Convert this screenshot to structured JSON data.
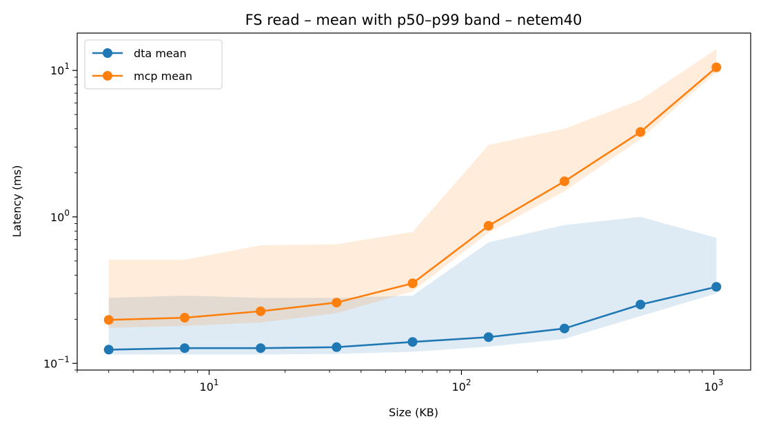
{
  "chart_data": {
    "type": "line",
    "title": "FS read – mean with p50–p99 band – netem40",
    "xlabel": "Size (KB)",
    "ylabel": "Latency (ms)",
    "xscale": "log",
    "yscale": "log",
    "xlim": [
      3.0,
      1400
    ],
    "ylim": [
      0.09,
      18
    ],
    "legend": "top-left",
    "grid": false,
    "x": [
      4,
      8,
      16,
      32,
      64,
      128,
      256,
      512,
      1024
    ],
    "x_ticks": [
      {
        "value": 10,
        "base": "10",
        "exp": "1"
      },
      {
        "value": 100,
        "base": "10",
        "exp": "2"
      },
      {
        "value": 1000,
        "base": "10",
        "exp": "3"
      }
    ],
    "y_ticks": [
      {
        "value": 0.1,
        "base": "10",
        "exp": "−1"
      },
      {
        "value": 1,
        "base": "10",
        "exp": "0"
      },
      {
        "value": 10,
        "base": "10",
        "exp": "1"
      }
    ],
    "series": [
      {
        "name": "dta mean",
        "color": "#1f77b4",
        "values": [
          0.124,
          0.127,
          0.127,
          0.129,
          0.14,
          0.151,
          0.173,
          0.252,
          0.333
        ],
        "band_low": [
          0.115,
          0.115,
          0.115,
          0.116,
          0.12,
          0.13,
          0.147,
          0.21,
          0.3
        ],
        "band_high": [
          0.28,
          0.29,
          0.28,
          0.28,
          0.29,
          0.67,
          0.88,
          1.0,
          0.72
        ]
      },
      {
        "name": "mcp mean",
        "color": "#ff7f0e",
        "values": [
          0.198,
          0.205,
          0.227,
          0.26,
          0.352,
          0.87,
          1.75,
          3.8,
          10.5
        ],
        "band_low": [
          0.175,
          0.18,
          0.19,
          0.22,
          0.31,
          0.78,
          1.5,
          3.4,
          9.8
        ],
        "band_high": [
          0.51,
          0.51,
          0.64,
          0.65,
          0.79,
          3.1,
          4.0,
          6.3,
          14.0
        ]
      }
    ]
  }
}
